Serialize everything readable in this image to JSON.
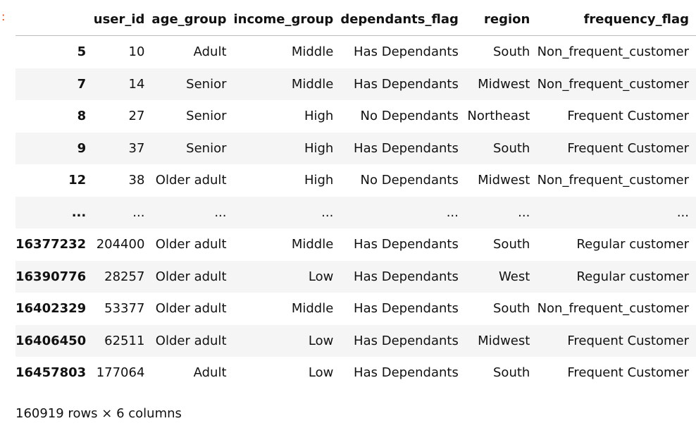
{
  "prompt": ":",
  "table": {
    "columns": [
      "user_id",
      "age_group",
      "income_group",
      "dependants_flag",
      "region",
      "frequency_flag"
    ],
    "rows": [
      [
        "5",
        "10",
        "Adult",
        "Middle",
        "Has Dependants",
        "South",
        "Non_frequent_customer"
      ],
      [
        "7",
        "14",
        "Senior",
        "Middle",
        "Has Dependants",
        "Midwest",
        "Non_frequent_customer"
      ],
      [
        "8",
        "27",
        "Senior",
        "High",
        "No Dependants",
        "Northeast",
        "Frequent Customer"
      ],
      [
        "9",
        "37",
        "Senior",
        "High",
        "Has Dependants",
        "South",
        "Frequent Customer"
      ],
      [
        "12",
        "38",
        "Older adult",
        "High",
        "No Dependants",
        "Midwest",
        "Non_frequent_customer"
      ],
      [
        "...",
        "...",
        "...",
        "...",
        "...",
        "...",
        "..."
      ],
      [
        "16377232",
        "204400",
        "Older adult",
        "Middle",
        "Has Dependants",
        "South",
        "Regular customer"
      ],
      [
        "16390776",
        "28257",
        "Older adult",
        "Low",
        "Has Dependants",
        "West",
        "Regular customer"
      ],
      [
        "16402329",
        "53377",
        "Older adult",
        "Middle",
        "Has Dependants",
        "South",
        "Non_frequent_customer"
      ],
      [
        "16406450",
        "62511",
        "Older adult",
        "Low",
        "Has Dependants",
        "Midwest",
        "Frequent Customer"
      ],
      [
        "16457803",
        "177064",
        "Adult",
        "Low",
        "Has Dependants",
        "South",
        "Frequent Customer"
      ]
    ]
  },
  "footer": "160919 rows × 6 columns"
}
